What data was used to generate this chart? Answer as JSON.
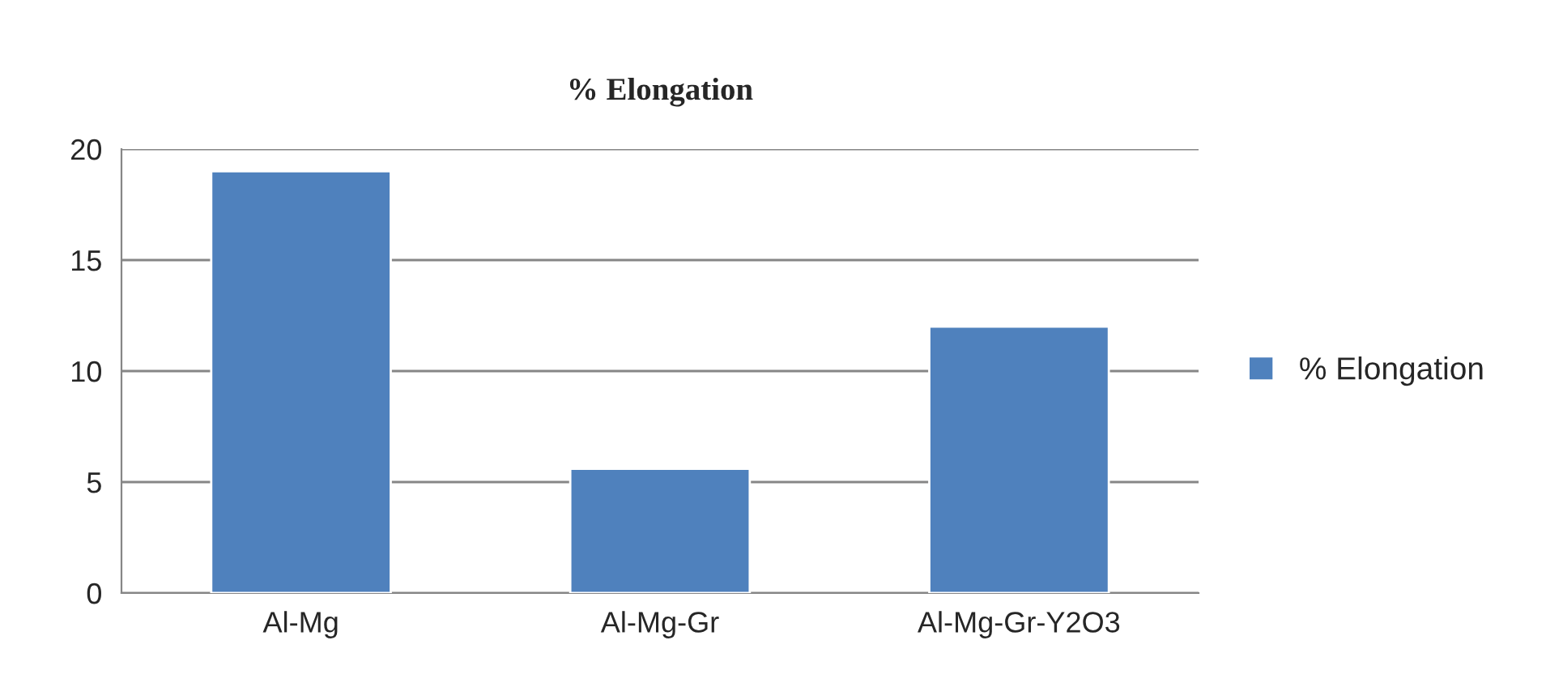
{
  "chart_data": {
    "type": "bar",
    "title": "% Elongation",
    "categories": [
      "Al-Mg",
      "Al-Mg-Gr",
      "Al-Mg-Gr-Y2O3"
    ],
    "series": [
      {
        "name": "% Elongation",
        "color": "#4f81bd",
        "values": [
          19,
          5.6,
          12
        ]
      }
    ],
    "ylim": [
      0,
      20
    ],
    "yticks": [
      0,
      5,
      10,
      15,
      20
    ],
    "grid": "y",
    "legend": "right"
  }
}
